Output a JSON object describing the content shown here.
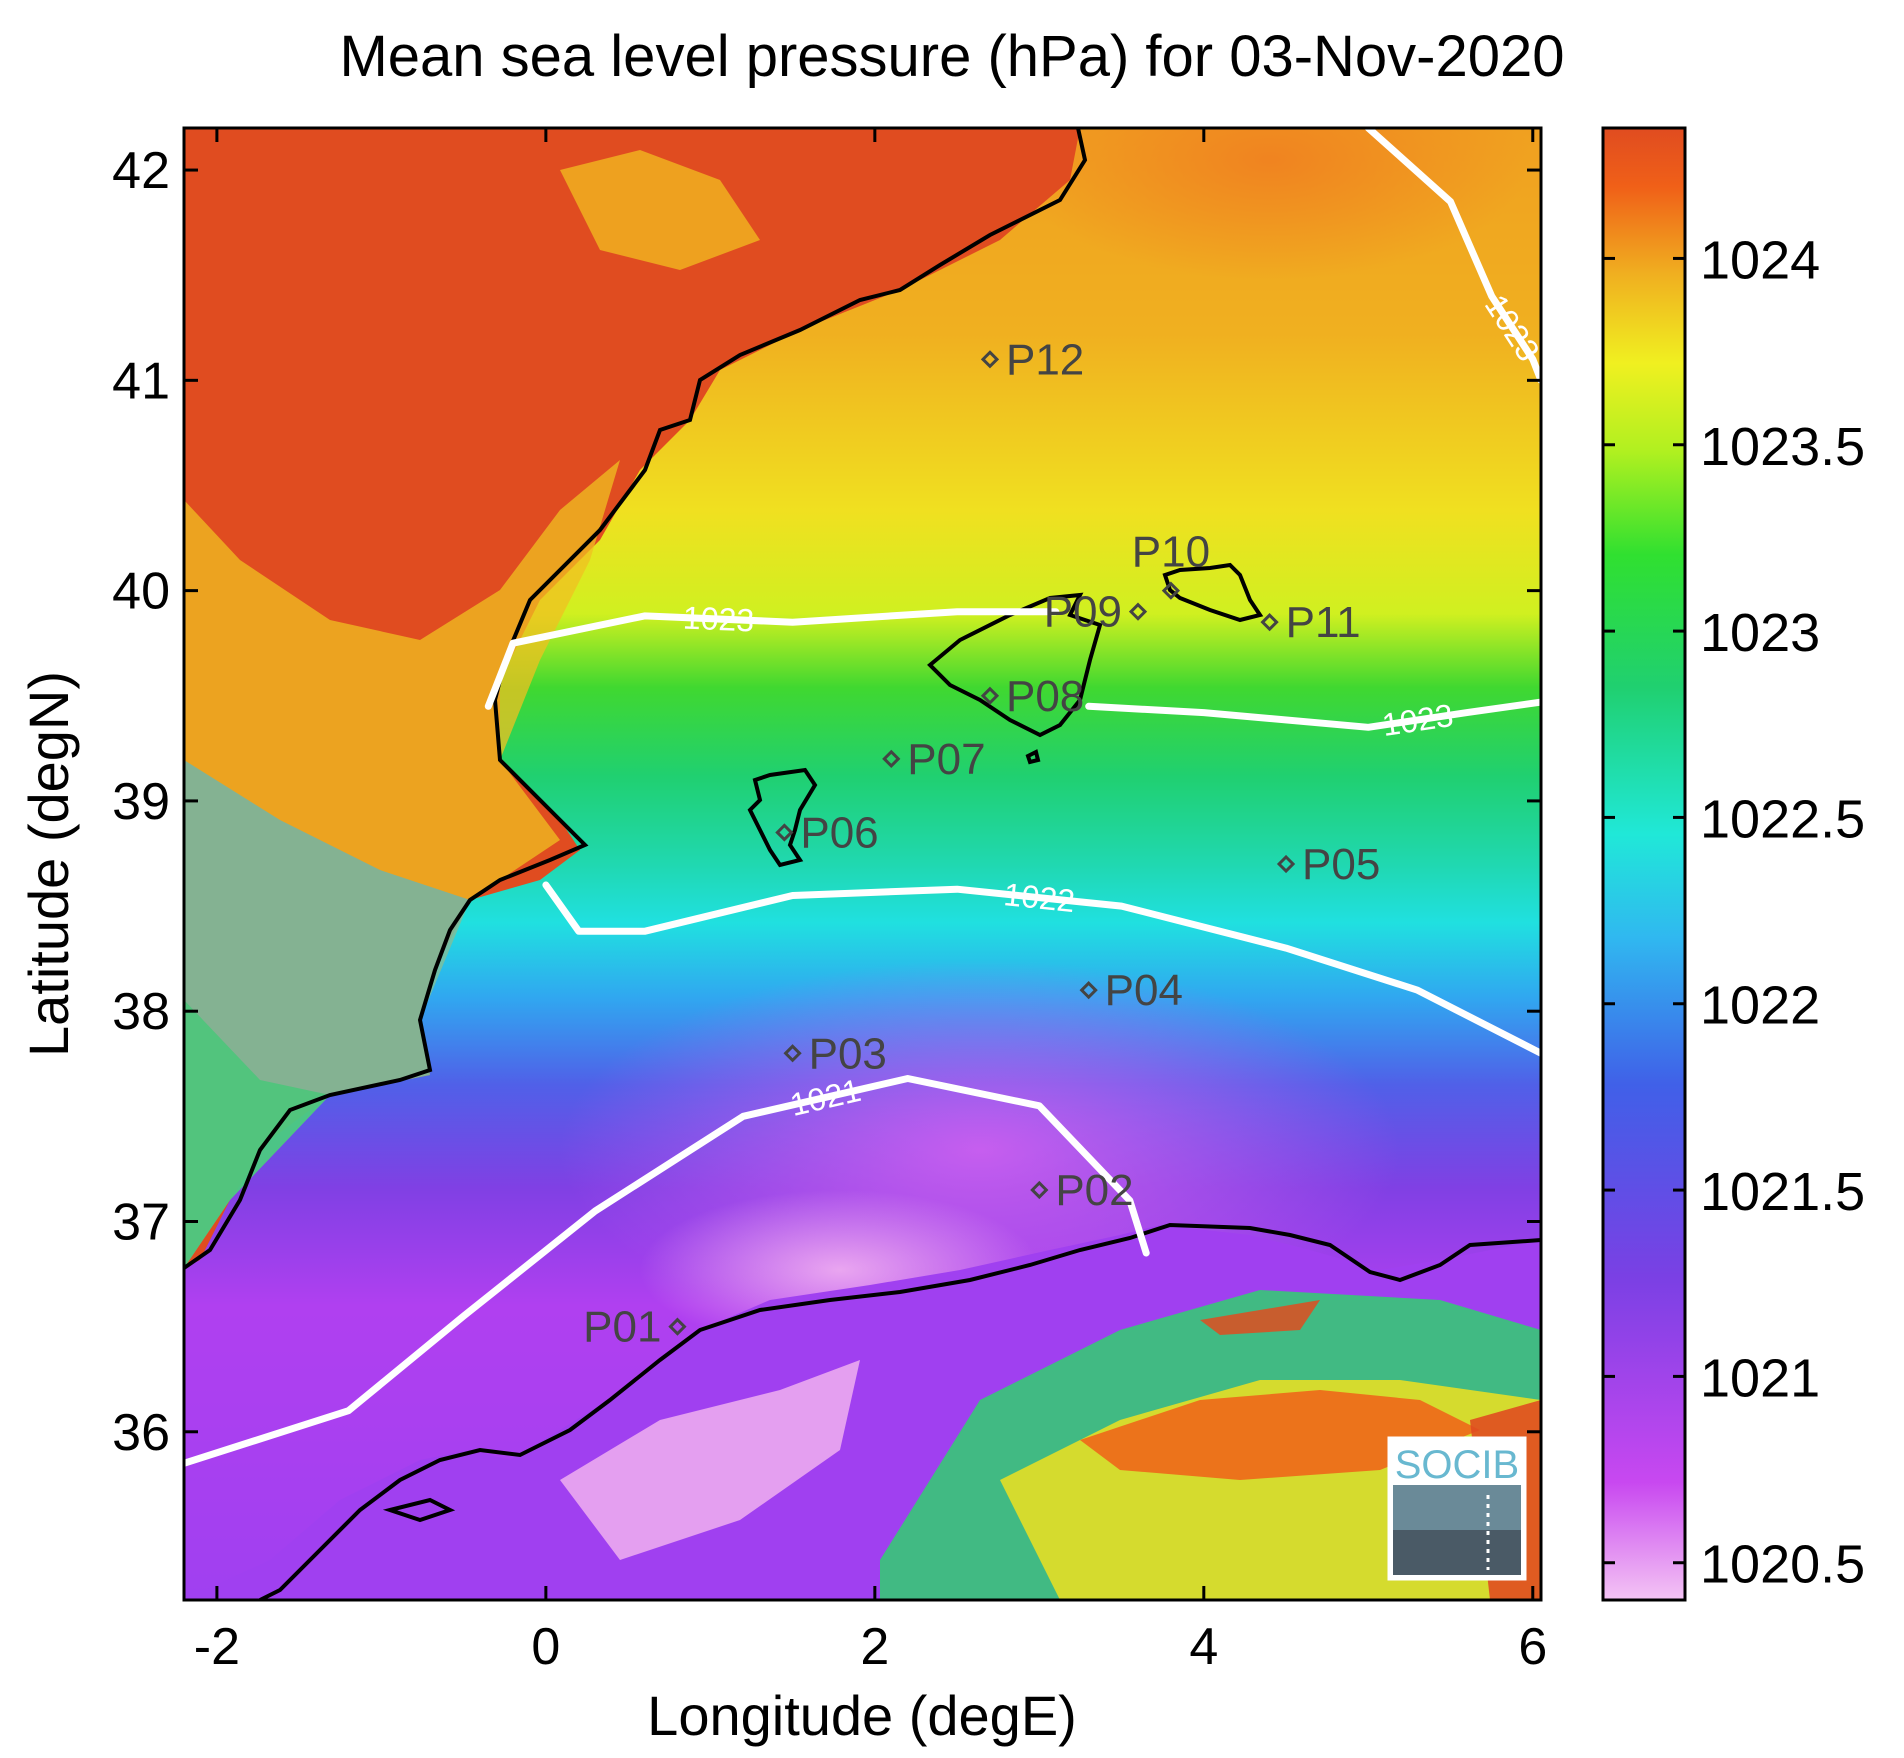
{
  "title": "Mean sea level pressure (hPa) for 03-Nov-2020",
  "axes": {
    "xlabel": "Longitude (degE)",
    "ylabel": "Latitude (degN)",
    "xlim": [
      -2.2,
      6.05
    ],
    "ylim": [
      35.2,
      42.2
    ],
    "xticks": [
      "-2",
      "0",
      "2",
      "4",
      "6"
    ],
    "yticks": [
      "36",
      "37",
      "38",
      "39",
      "40",
      "41",
      "42"
    ]
  },
  "colorbar": {
    "range": [
      1020.4,
      1024.35
    ],
    "ticks": [
      "1020.5",
      "1021",
      "1021.5",
      "1022",
      "1022.5",
      "1023",
      "1023.5",
      "1024"
    ],
    "colors": [
      "#f0b8f0",
      "#c040f0",
      "#7040e0",
      "#3c80f0",
      "#20e8e0",
      "#20d060",
      "#30e030",
      "#c0f020",
      "#f0f020",
      "#f0b020",
      "#f06018",
      "#e04c20"
    ]
  },
  "contours": [
    {
      "label": "1021",
      "points": [
        [
          -2.2,
          35.85
        ],
        [
          -1.2,
          36.1
        ],
        [
          -0.5,
          36.55
        ],
        [
          0.3,
          37.05
        ],
        [
          1.2,
          37.5
        ],
        [
          2.2,
          37.68
        ],
        [
          3.0,
          37.55
        ],
        [
          3.55,
          37.1
        ],
        [
          3.65,
          36.85
        ]
      ]
    },
    {
      "label": "1022",
      "points": [
        [
          0.0,
          38.6
        ],
        [
          0.2,
          38.38
        ],
        [
          0.6,
          38.38
        ],
        [
          1.5,
          38.55
        ],
        [
          2.5,
          38.58
        ],
        [
          3.5,
          38.5
        ],
        [
          4.5,
          38.3
        ],
        [
          5.3,
          38.1
        ],
        [
          6.05,
          37.8
        ]
      ]
    },
    {
      "label": "1023",
      "points": [
        [
          -0.35,
          39.45
        ],
        [
          -0.2,
          39.75
        ],
        [
          0.6,
          39.88
        ],
        [
          1.5,
          39.85
        ],
        [
          2.5,
          39.9
        ],
        [
          3.1,
          39.9
        ]
      ]
    },
    {
      "label": "1023",
      "points": [
        [
          3.3,
          39.45
        ],
        [
          4.0,
          39.42
        ],
        [
          5.0,
          39.35
        ],
        [
          5.6,
          39.42
        ],
        [
          6.05,
          39.47
        ]
      ]
    },
    {
      "label": "1023",
      "points": [
        [
          5.0,
          42.2
        ],
        [
          5.5,
          41.85
        ],
        [
          5.75,
          41.4
        ],
        [
          6.0,
          41.1
        ],
        [
          6.05,
          41.0
        ]
      ]
    }
  ],
  "stations": [
    {
      "label": "P01",
      "lon": 0.8,
      "lat": 36.5
    },
    {
      "label": "P02",
      "lon": 3.0,
      "lat": 37.15
    },
    {
      "label": "P03",
      "lon": 1.5,
      "lat": 37.8
    },
    {
      "label": "P04",
      "lon": 3.3,
      "lat": 38.1
    },
    {
      "label": "P05",
      "lon": 4.5,
      "lat": 38.7
    },
    {
      "label": "P06",
      "lon": 1.45,
      "lat": 38.85
    },
    {
      "label": "P07",
      "lon": 2.1,
      "lat": 39.2
    },
    {
      "label": "P08",
      "lon": 2.7,
      "lat": 39.5
    },
    {
      "label": "P09",
      "lon": 3.6,
      "lat": 39.9
    },
    {
      "label": "P10",
      "lon": 3.8,
      "lat": 40.0
    },
    {
      "label": "P11",
      "lon": 4.4,
      "lat": 39.85
    },
    {
      "label": "P12",
      "lon": 2.7,
      "lat": 41.1
    }
  ],
  "logo": {
    "text": "SOCIB"
  }
}
